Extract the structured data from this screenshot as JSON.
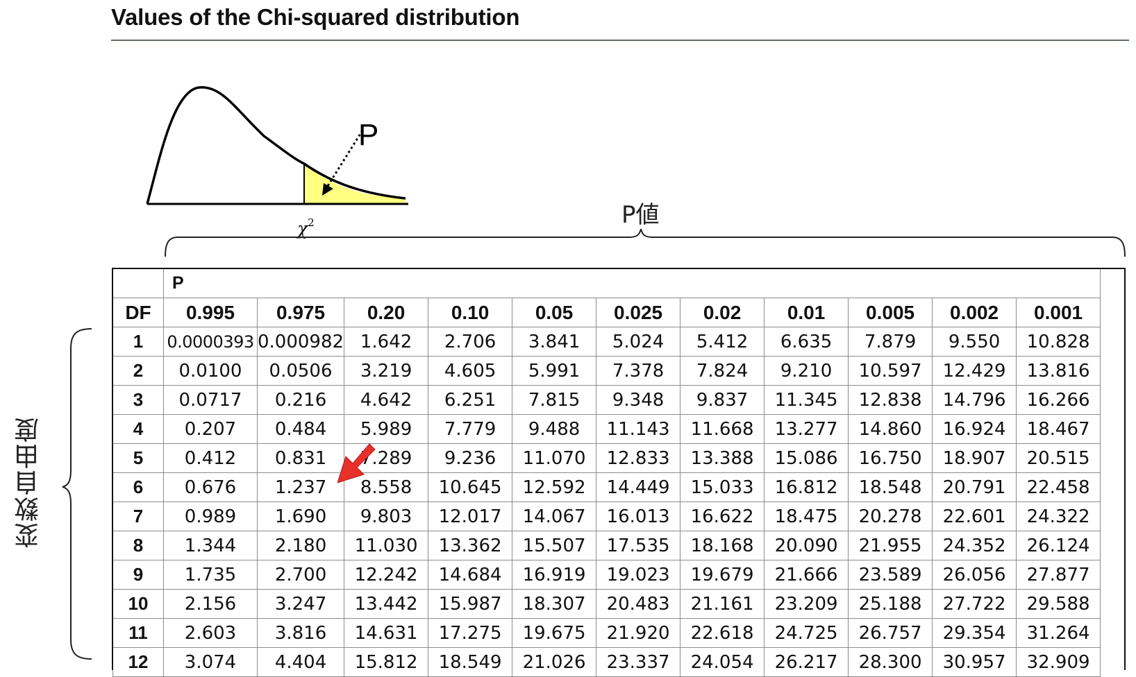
{
  "title": "Values of the Chi-squared distribution",
  "figure": {
    "p_label": "P",
    "chi_label": "χ",
    "chi_sup": "2",
    "curve_color": "#000000",
    "fill_color": "#ffff80"
  },
  "annotations": {
    "p_value_label": "P値",
    "df_label": "変数自由度",
    "arrow_color": "#e8302a"
  },
  "table": {
    "p_header": "P",
    "df_header": "DF",
    "p_values": [
      "0.995",
      "0.975",
      "0.20",
      "0.10",
      "0.05",
      "0.025",
      "0.02",
      "0.01",
      "0.005",
      "0.002",
      "0.001"
    ],
    "rows": [
      {
        "df": "1",
        "values": [
          "0.0000393",
          "0.000982",
          "1.642",
          "2.706",
          "3.841",
          "5.024",
          "5.412",
          "6.635",
          "7.879",
          "9.550",
          "10.828"
        ]
      },
      {
        "df": "2",
        "values": [
          "0.0100",
          "0.0506",
          "3.219",
          "4.605",
          "5.991",
          "7.378",
          "7.824",
          "9.210",
          "10.597",
          "12.429",
          "13.816"
        ]
      },
      {
        "df": "3",
        "values": [
          "0.0717",
          "0.216",
          "4.642",
          "6.251",
          "7.815",
          "9.348",
          "9.837",
          "11.345",
          "12.838",
          "14.796",
          "16.266"
        ]
      },
      {
        "df": "4",
        "values": [
          "0.207",
          "0.484",
          "5.989",
          "7.779",
          "9.488",
          "11.143",
          "11.668",
          "13.277",
          "14.860",
          "16.924",
          "18.467"
        ]
      },
      {
        "df": "5",
        "values": [
          "0.412",
          "0.831",
          "7.289",
          "9.236",
          "11.070",
          "12.833",
          "13.388",
          "15.086",
          "16.750",
          "18.907",
          "20.515"
        ]
      },
      {
        "df": "6",
        "values": [
          "0.676",
          "1.237",
          "8.558",
          "10.645",
          "12.592",
          "14.449",
          "15.033",
          "16.812",
          "18.548",
          "20.791",
          "22.458"
        ]
      },
      {
        "df": "7",
        "values": [
          "0.989",
          "1.690",
          "9.803",
          "12.017",
          "14.067",
          "16.013",
          "16.622",
          "18.475",
          "20.278",
          "22.601",
          "24.322"
        ]
      },
      {
        "df": "8",
        "values": [
          "1.344",
          "2.180",
          "11.030",
          "13.362",
          "15.507",
          "17.535",
          "18.168",
          "20.090",
          "21.955",
          "24.352",
          "26.124"
        ]
      },
      {
        "df": "9",
        "values": [
          "1.735",
          "2.700",
          "12.242",
          "14.684",
          "16.919",
          "19.023",
          "19.679",
          "21.666",
          "23.589",
          "26.056",
          "27.877"
        ]
      },
      {
        "df": "10",
        "values": [
          "2.156",
          "3.247",
          "13.442",
          "15.987",
          "18.307",
          "20.483",
          "21.161",
          "23.209",
          "25.188",
          "27.722",
          "29.588"
        ]
      },
      {
        "df": "11",
        "values": [
          "2.603",
          "3.816",
          "14.631",
          "17.275",
          "19.675",
          "21.920",
          "22.618",
          "24.725",
          "26.757",
          "29.354",
          "31.264"
        ]
      },
      {
        "df": "12",
        "values": [
          "3.074",
          "4.404",
          "15.812",
          "18.549",
          "21.026",
          "23.337",
          "24.054",
          "26.217",
          "28.300",
          "30.957",
          "32.909"
        ]
      }
    ]
  }
}
